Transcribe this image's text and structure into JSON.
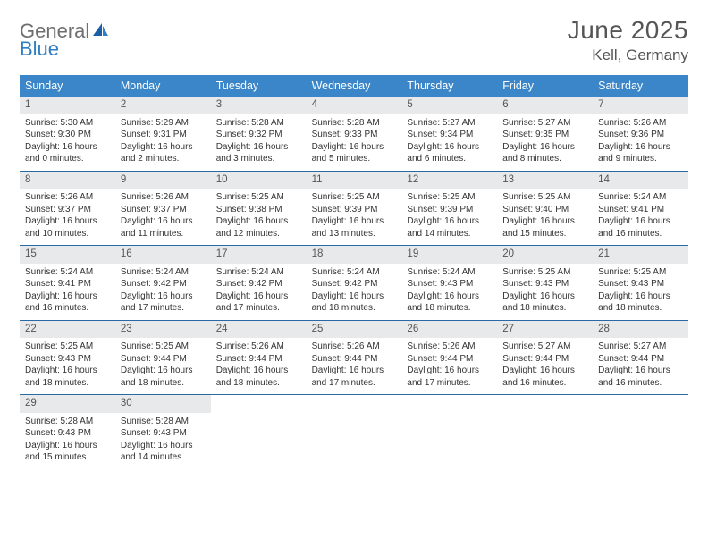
{
  "logo": {
    "text1": "General",
    "text2": "Blue"
  },
  "title": "June 2025",
  "location": "Kell, Germany",
  "colors": {
    "header_bg": "#3a86c8",
    "header_text": "#ffffff",
    "daynum_bg": "#e7e9eb",
    "row_border": "#2a6aa3",
    "title_color": "#555555",
    "body_text": "#333333",
    "logo_gray": "#6f6f6f",
    "logo_blue": "#2f7fc2"
  },
  "layout": {
    "cols": 7,
    "col_labels_fontsize": 12.5,
    "body_fontsize": 10,
    "title_fontsize": 28,
    "location_fontsize": 17
  },
  "weekdays": [
    "Sunday",
    "Monday",
    "Tuesday",
    "Wednesday",
    "Thursday",
    "Friday",
    "Saturday"
  ],
  "days": [
    {
      "n": 1,
      "sunrise": "5:30 AM",
      "sunset": "9:30 PM",
      "daylight": "16 hours and 0 minutes."
    },
    {
      "n": 2,
      "sunrise": "5:29 AM",
      "sunset": "9:31 PM",
      "daylight": "16 hours and 2 minutes."
    },
    {
      "n": 3,
      "sunrise": "5:28 AM",
      "sunset": "9:32 PM",
      "daylight": "16 hours and 3 minutes."
    },
    {
      "n": 4,
      "sunrise": "5:28 AM",
      "sunset": "9:33 PM",
      "daylight": "16 hours and 5 minutes."
    },
    {
      "n": 5,
      "sunrise": "5:27 AM",
      "sunset": "9:34 PM",
      "daylight": "16 hours and 6 minutes."
    },
    {
      "n": 6,
      "sunrise": "5:27 AM",
      "sunset": "9:35 PM",
      "daylight": "16 hours and 8 minutes."
    },
    {
      "n": 7,
      "sunrise": "5:26 AM",
      "sunset": "9:36 PM",
      "daylight": "16 hours and 9 minutes."
    },
    {
      "n": 8,
      "sunrise": "5:26 AM",
      "sunset": "9:37 PM",
      "daylight": "16 hours and 10 minutes."
    },
    {
      "n": 9,
      "sunrise": "5:26 AM",
      "sunset": "9:37 PM",
      "daylight": "16 hours and 11 minutes."
    },
    {
      "n": 10,
      "sunrise": "5:25 AM",
      "sunset": "9:38 PM",
      "daylight": "16 hours and 12 minutes."
    },
    {
      "n": 11,
      "sunrise": "5:25 AM",
      "sunset": "9:39 PM",
      "daylight": "16 hours and 13 minutes."
    },
    {
      "n": 12,
      "sunrise": "5:25 AM",
      "sunset": "9:39 PM",
      "daylight": "16 hours and 14 minutes."
    },
    {
      "n": 13,
      "sunrise": "5:25 AM",
      "sunset": "9:40 PM",
      "daylight": "16 hours and 15 minutes."
    },
    {
      "n": 14,
      "sunrise": "5:24 AM",
      "sunset": "9:41 PM",
      "daylight": "16 hours and 16 minutes."
    },
    {
      "n": 15,
      "sunrise": "5:24 AM",
      "sunset": "9:41 PM",
      "daylight": "16 hours and 16 minutes."
    },
    {
      "n": 16,
      "sunrise": "5:24 AM",
      "sunset": "9:42 PM",
      "daylight": "16 hours and 17 minutes."
    },
    {
      "n": 17,
      "sunrise": "5:24 AM",
      "sunset": "9:42 PM",
      "daylight": "16 hours and 17 minutes."
    },
    {
      "n": 18,
      "sunrise": "5:24 AM",
      "sunset": "9:42 PM",
      "daylight": "16 hours and 18 minutes."
    },
    {
      "n": 19,
      "sunrise": "5:24 AM",
      "sunset": "9:43 PM",
      "daylight": "16 hours and 18 minutes."
    },
    {
      "n": 20,
      "sunrise": "5:25 AM",
      "sunset": "9:43 PM",
      "daylight": "16 hours and 18 minutes."
    },
    {
      "n": 21,
      "sunrise": "5:25 AM",
      "sunset": "9:43 PM",
      "daylight": "16 hours and 18 minutes."
    },
    {
      "n": 22,
      "sunrise": "5:25 AM",
      "sunset": "9:43 PM",
      "daylight": "16 hours and 18 minutes."
    },
    {
      "n": 23,
      "sunrise": "5:25 AM",
      "sunset": "9:44 PM",
      "daylight": "16 hours and 18 minutes."
    },
    {
      "n": 24,
      "sunrise": "5:26 AM",
      "sunset": "9:44 PM",
      "daylight": "16 hours and 18 minutes."
    },
    {
      "n": 25,
      "sunrise": "5:26 AM",
      "sunset": "9:44 PM",
      "daylight": "16 hours and 17 minutes."
    },
    {
      "n": 26,
      "sunrise": "5:26 AM",
      "sunset": "9:44 PM",
      "daylight": "16 hours and 17 minutes."
    },
    {
      "n": 27,
      "sunrise": "5:27 AM",
      "sunset": "9:44 PM",
      "daylight": "16 hours and 16 minutes."
    },
    {
      "n": 28,
      "sunrise": "5:27 AM",
      "sunset": "9:44 PM",
      "daylight": "16 hours and 16 minutes."
    },
    {
      "n": 29,
      "sunrise": "5:28 AM",
      "sunset": "9:43 PM",
      "daylight": "16 hours and 15 minutes."
    },
    {
      "n": 30,
      "sunrise": "5:28 AM",
      "sunset": "9:43 PM",
      "daylight": "16 hours and 14 minutes."
    }
  ],
  "labels": {
    "sunrise": "Sunrise:",
    "sunset": "Sunset:",
    "daylight": "Daylight:"
  }
}
